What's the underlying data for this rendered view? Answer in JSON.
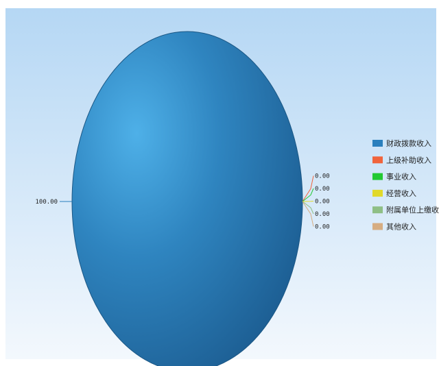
{
  "chart_data": {
    "type": "pie",
    "categories": [
      "财政拨款收入",
      "上级补助收入",
      "事业收入",
      "经营收入",
      "附属单位上缴收入",
      "其他收入"
    ],
    "values": [
      100.0,
      0.0,
      0.0,
      0.0,
      0.0,
      0.0
    ],
    "value_labels": [
      "100.00",
      "0.00",
      "0.00",
      "0.00",
      "0.00",
      "0.00"
    ],
    "colors": [
      "#2a7fbd",
      "#f0643c",
      "#22c932",
      "#e1d92a",
      "#8fbf86",
      "#d6ad82"
    ],
    "legend": "right",
    "title": ""
  }
}
